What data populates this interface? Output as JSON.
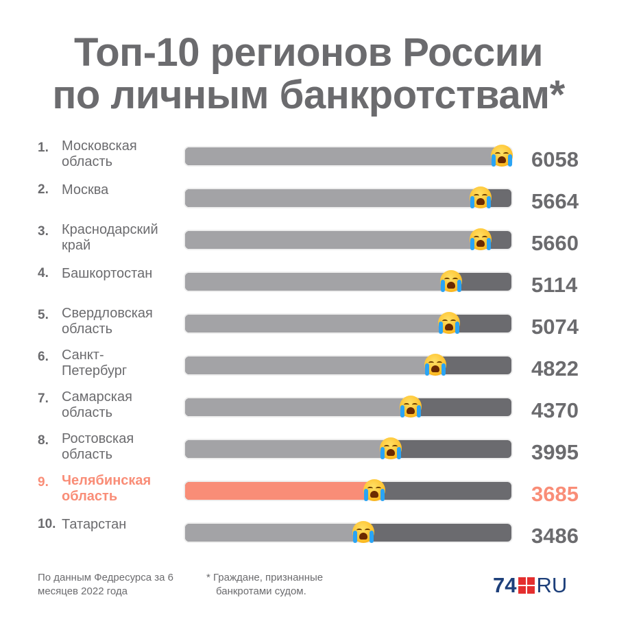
{
  "title_line1": "Топ-10 регионов России",
  "title_line2": "по личным банкротствам*",
  "chart_data": {
    "type": "bar",
    "orientation": "horizontal",
    "title": "Топ-10 регионов России по личным банкротствам*",
    "xlim": [
      0,
      6058
    ],
    "highlight_color": "#f98d77",
    "bar_color": "#a3a3a6",
    "track_color": "#6b6b6f",
    "rows": [
      {
        "rank": "1.",
        "name": "Московская область",
        "value": 6058,
        "value_label": "6058"
      },
      {
        "rank": "2.",
        "name": "Москва",
        "value": 5664,
        "value_label": "5664"
      },
      {
        "rank": "3.",
        "name": "Краснодарский край",
        "value": 5660,
        "value_label": "5660"
      },
      {
        "rank": "4.",
        "name": "Башкортостан",
        "value": 5114,
        "value_label": "5114"
      },
      {
        "rank": "5.",
        "name": "Свердловская область",
        "value": 5074,
        "value_label": "5074"
      },
      {
        "rank": "6.",
        "name": "Санкт-Петербург",
        "value": 4822,
        "value_label": "4822"
      },
      {
        "rank": "7.",
        "name": "Самарская область",
        "value": 4370,
        "value_label": "4370"
      },
      {
        "rank": "8.",
        "name": "Ростовская область",
        "value": 3995,
        "value_label": "3995"
      },
      {
        "rank": "9.",
        "name": "Челябинская область",
        "value": 3685,
        "value_label": "3685",
        "highlight": true
      },
      {
        "rank": "10.",
        "name": "Татарстан",
        "value": 3486,
        "value_label": "3486"
      }
    ]
  },
  "marker_icon": "loudly-crying-face-icon",
  "footer": {
    "source": "По данным Федресурса за 6 месяцев 2022 года",
    "note_line1": "* Граждане, признанные",
    "note_line2": "банкротами судом."
  },
  "logo": {
    "number": "74",
    "suffix": "RU",
    "mark_color": "#e42f2f",
    "text_color": "#1d3f7a"
  }
}
